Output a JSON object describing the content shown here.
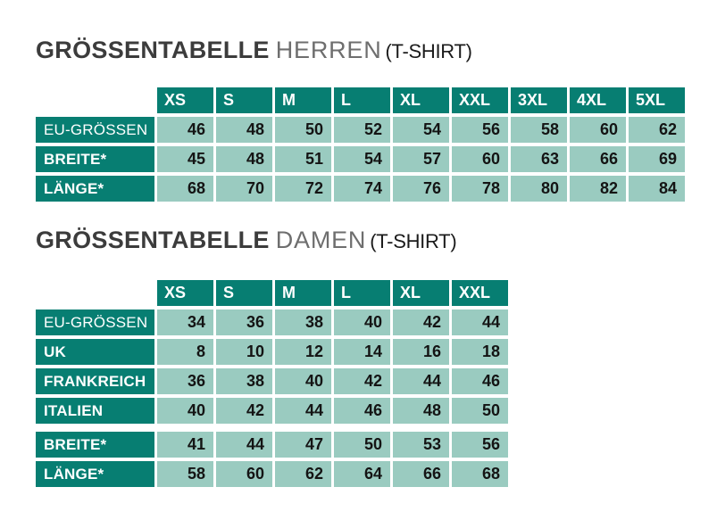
{
  "colors": {
    "header_teal": "#077e72",
    "cell_green": "#9acbc0",
    "title_dark": "#3c3c3c",
    "title_gray": "#6e6e6e",
    "product_black": "#1b1b1b"
  },
  "tables": [
    {
      "title": {
        "main": "GRÖSSENTABELLE",
        "audience": "HERREN",
        "product": "(T-SHIRT)"
      },
      "columns": [
        "XS",
        "S",
        "M",
        "L",
        "XL",
        "XXL",
        "3XL",
        "4XL",
        "5XL"
      ],
      "rows": [
        {
          "label": "EU-GRÖSSEN",
          "bold": false,
          "gap_before": false,
          "values": [
            46,
            48,
            50,
            52,
            54,
            56,
            58,
            60,
            62
          ]
        },
        {
          "label": "BREITE*",
          "bold": true,
          "gap_before": false,
          "values": [
            45,
            48,
            51,
            54,
            57,
            60,
            63,
            66,
            69
          ]
        },
        {
          "label": "LÄNGE*",
          "bold": true,
          "gap_before": false,
          "values": [
            68,
            70,
            72,
            74,
            76,
            78,
            80,
            82,
            84
          ]
        }
      ]
    },
    {
      "title": {
        "main": "GRÖSSENTABELLE",
        "audience": "DAMEN",
        "product": "(T-SHIRT)"
      },
      "columns": [
        "XS",
        "S",
        "M",
        "L",
        "XL",
        "XXL"
      ],
      "rows": [
        {
          "label": "EU-GRÖSSEN",
          "bold": false,
          "gap_before": false,
          "values": [
            34,
            36,
            38,
            40,
            42,
            44
          ]
        },
        {
          "label": "UK",
          "bold": true,
          "gap_before": false,
          "values": [
            8,
            10,
            12,
            14,
            16,
            18
          ]
        },
        {
          "label": "FRANKREICH",
          "bold": true,
          "gap_before": false,
          "values": [
            36,
            38,
            40,
            42,
            44,
            46
          ]
        },
        {
          "label": "ITALIEN",
          "bold": true,
          "gap_before": false,
          "values": [
            40,
            42,
            44,
            46,
            48,
            50
          ]
        },
        {
          "label": "BREITE*",
          "bold": true,
          "gap_before": true,
          "values": [
            41,
            44,
            47,
            50,
            53,
            56
          ]
        },
        {
          "label": "LÄNGE*",
          "bold": true,
          "gap_before": false,
          "values": [
            58,
            60,
            62,
            64,
            66,
            68
          ]
        }
      ]
    }
  ]
}
